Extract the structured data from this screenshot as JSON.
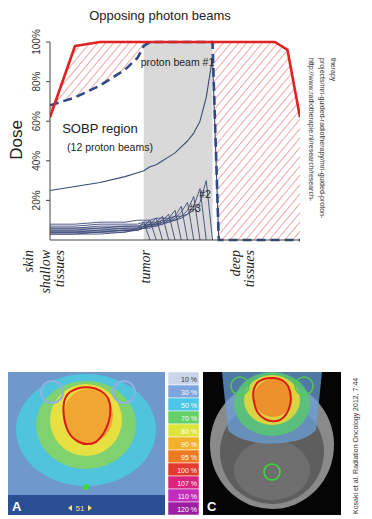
{
  "chart_data": {
    "type": "line",
    "ylabel": "Dose",
    "x": [
      0,
      10,
      20,
      30,
      35,
      37.5,
      40,
      42.5,
      45,
      47.5,
      50,
      52.5,
      55,
      57.5,
      60,
      62.5,
      65,
      67.5,
      70,
      80,
      90,
      95,
      100
    ],
    "xlim": [
      0,
      100
    ],
    "ylim": [
      0,
      100
    ],
    "yticks": [
      {
        "value": 20,
        "label": "20%"
      },
      {
        "value": 40,
        "label": "40%"
      },
      {
        "value": 60,
        "label": "60%"
      },
      {
        "value": 80,
        "label": "80%"
      },
      {
        "value": 100,
        "label": "100%"
      }
    ],
    "tick_labels": "y",
    "tumor_region": [
      37.5,
      65
    ],
    "region_labels": [
      {
        "text": "skin",
        "x": -7
      },
      {
        "text": "shallow tissues",
        "x": 0
      },
      {
        "text": "tumor",
        "x": 40
      },
      {
        "text": "deep tissues",
        "x": 76
      }
    ],
    "annotations": [
      {
        "text": "Opposing photon beams",
        "x": 44,
        "y": 111
      },
      {
        "text": "proton beam #1",
        "x": 51,
        "y": 88
      },
      {
        "text": "SOBP region",
        "x": 20,
        "y": 54
      },
      {
        "text": "(12 proton beams)",
        "x": 24,
        "y": 45
      },
      {
        "text": "#2",
        "x": 62,
        "y": 21
      },
      {
        "text": "#3",
        "x": 58,
        "y": 14
      }
    ],
    "series": [
      {
        "color": "#e02222",
        "line_style": "solid",
        "values": [
          62,
          98,
          100,
          100,
          100,
          100,
          100,
          100,
          100,
          100,
          100,
          100,
          100,
          100,
          100,
          100,
          100,
          100,
          100,
          100,
          100,
          96,
          62
        ]
      },
      {
        "color": "#2f4a88",
        "line_style": "dashed",
        "values": [
          68,
          72,
          78,
          86,
          92,
          98,
          100,
          100,
          100,
          100,
          100,
          100,
          100,
          100,
          100,
          100,
          100,
          0,
          0,
          0,
          0,
          0,
          0
        ]
      },
      {
        "color": "#3c4a78",
        "line_style": "solid",
        "values": [
          25,
          27,
          29,
          32,
          34,
          35,
          37,
          38,
          40,
          42,
          44,
          47,
          50,
          54,
          60,
          72,
          92,
          0,
          null,
          null,
          null,
          null,
          null
        ]
      },
      {
        "color": "#3c4a78",
        "line_style": "solid",
        "values": [
          8,
          8,
          9,
          9,
          10,
          10,
          10,
          11,
          11,
          11,
          12,
          12,
          13,
          15,
          19,
          30,
          0,
          null,
          null,
          null,
          null,
          null,
          null
        ]
      },
      {
        "color": "#3c4a78",
        "line_style": "solid",
        "values": [
          7,
          7,
          8,
          8,
          8,
          9,
          9,
          9,
          10,
          10,
          10,
          11,
          13,
          17,
          26,
          0,
          null,
          null,
          null,
          null,
          null,
          null,
          null
        ]
      },
      {
        "color": "#3c4a78",
        "line_style": "solid",
        "values": [
          6,
          6,
          7,
          7,
          7,
          8,
          8,
          8,
          9,
          9,
          10,
          12,
          15,
          22,
          0,
          null,
          null,
          null,
          null,
          null,
          null,
          null,
          null
        ]
      },
      {
        "color": "#3c4a78",
        "line_style": "solid",
        "values": [
          6,
          6,
          6,
          7,
          7,
          7,
          8,
          8,
          8,
          9,
          11,
          14,
          19,
          0,
          null,
          null,
          null,
          null,
          null,
          null,
          null,
          null,
          null
        ]
      },
      {
        "color": "#3c4a78",
        "line_style": "solid",
        "values": [
          5,
          5,
          6,
          6,
          6,
          7,
          7,
          7,
          8,
          10,
          12,
          17,
          0,
          null,
          null,
          null,
          null,
          null,
          null,
          null,
          null,
          null,
          null
        ]
      },
      {
        "color": "#3c4a78",
        "line_style": "solid",
        "values": [
          5,
          5,
          5,
          6,
          6,
          6,
          7,
          7,
          9,
          11,
          15,
          0,
          null,
          null,
          null,
          null,
          null,
          null,
          null,
          null,
          null,
          null,
          null
        ]
      },
      {
        "color": "#3c4a78",
        "line_style": "solid",
        "values": [
          4,
          4,
          5,
          5,
          5,
          6,
          6,
          8,
          10,
          13,
          0,
          null,
          null,
          null,
          null,
          null,
          null,
          null,
          null,
          null,
          null,
          null,
          null
        ]
      },
      {
        "color": "#3c4a78",
        "line_style": "solid",
        "values": [
          4,
          4,
          4,
          5,
          5,
          6,
          7,
          9,
          12,
          0,
          null,
          null,
          null,
          null,
          null,
          null,
          null,
          null,
          null,
          null,
          null,
          null,
          null
        ]
      },
      {
        "color": "#3c4a78",
        "line_style": "solid",
        "values": [
          4,
          4,
          4,
          5,
          5,
          6,
          8,
          11,
          0,
          null,
          null,
          null,
          null,
          null,
          null,
          null,
          null,
          null,
          null,
          null,
          null,
          null,
          null
        ]
      },
      {
        "color": "#3c4a78",
        "line_style": "solid",
        "values": [
          3,
          3,
          4,
          4,
          5,
          7,
          10,
          0,
          null,
          null,
          null,
          null,
          null,
          null,
          null,
          null,
          null,
          null,
          null,
          null,
          null,
          null,
          null
        ]
      },
      {
        "color": "#3c4a78",
        "line_style": "solid",
        "values": [
          3,
          3,
          3,
          4,
          6,
          9,
          0,
          null,
          null,
          null,
          null,
          null,
          null,
          null,
          null,
          null,
          null,
          null,
          null,
          null,
          null,
          null,
          null
        ]
      }
    ]
  },
  "colorbar": {
    "ticks": [
      {
        "value": 10,
        "label": "10 %"
      },
      {
        "value": 30,
        "label": "30 %"
      },
      {
        "value": 50,
        "label": "50 %"
      },
      {
        "value": 70,
        "label": "70 %"
      },
      {
        "value": 80,
        "label": "80 %"
      },
      {
        "value": 90,
        "label": "90 %"
      },
      {
        "value": 95,
        "label": "95 %"
      },
      {
        "value": 100,
        "label": "100 %"
      },
      {
        "value": 107,
        "label": "107 %"
      },
      {
        "value": 110,
        "label": "110 %"
      },
      {
        "value": 120,
        "label": "120 %"
      }
    ],
    "colors": [
      "#c9d6ea",
      "#7fa6dc",
      "#4cc6e6",
      "#64d068",
      "#dfe43a",
      "#f3b12a",
      "#f07a22",
      "#e23a2e",
      "#d8247a",
      "#c22dbd",
      "#9c1fa0"
    ]
  },
  "panels": [
    {
      "label": "A",
      "slice": "51"
    },
    {
      "label": "C"
    }
  ],
  "citations": {
    "url_lines": [
      "http://www.radiotherapie.nl/research/research-",
      "projects/mri-guided-radiotherapy/mri-guided-proton-",
      "therapy"
    ],
    "paper": "Kosaki et al. Radiation Oncology 2012, 7:44"
  }
}
